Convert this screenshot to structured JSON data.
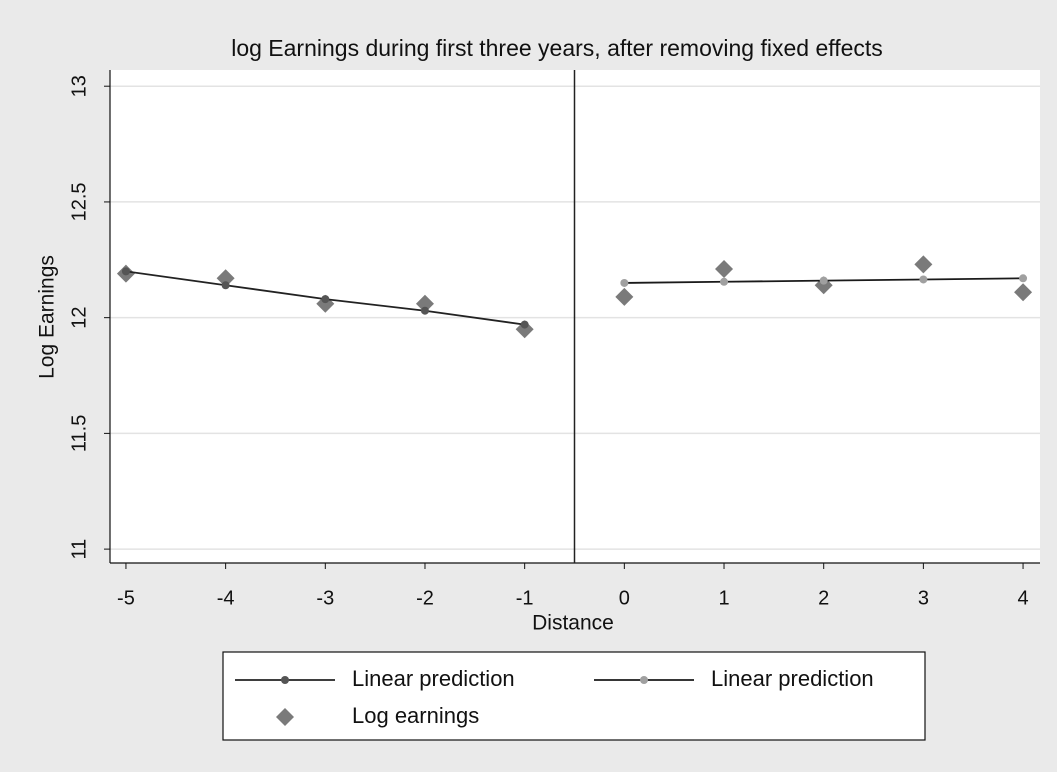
{
  "chart_data": {
    "type": "scatter",
    "title": "log Earnings during first three years, after removing fixed effects",
    "x_label": "Distance",
    "y_label": "Log Earnings",
    "xlim": [
      -5.16,
      4.17
    ],
    "ylim": [
      10.94,
      13.07
    ],
    "xticks": [
      -5,
      -4,
      -3,
      -2,
      -1,
      0,
      1,
      2,
      3,
      4
    ],
    "yticks": [
      11,
      11.5,
      12,
      12.5,
      13
    ],
    "grid": true,
    "vline": -0.5,
    "legend": "bottom",
    "series": [
      {
        "name": "Linear prediction",
        "mode": "lines+markers",
        "color": "#222222",
        "marker_color": "#555555",
        "x": [
          -5,
          -4,
          -3,
          -2,
          -1
        ],
        "values": [
          12.2,
          12.14,
          12.08,
          12.03,
          11.97
        ]
      },
      {
        "name": "Linear prediction",
        "mode": "lines+markers",
        "color": "#1a1a1a",
        "marker_color": "#a0a0a0",
        "x": [
          0,
          1,
          2,
          3,
          4
        ],
        "values": [
          12.15,
          12.155,
          12.16,
          12.165,
          12.17
        ]
      },
      {
        "name": "Log earnings",
        "mode": "markers",
        "color": "#7a7a7a",
        "x": [
          -5,
          -4,
          -3,
          -2,
          -1,
          0,
          1,
          2,
          3,
          4
        ],
        "values": [
          12.19,
          12.17,
          12.06,
          12.06,
          11.95,
          12.09,
          12.21,
          12.14,
          12.23,
          12.11
        ]
      }
    ]
  }
}
